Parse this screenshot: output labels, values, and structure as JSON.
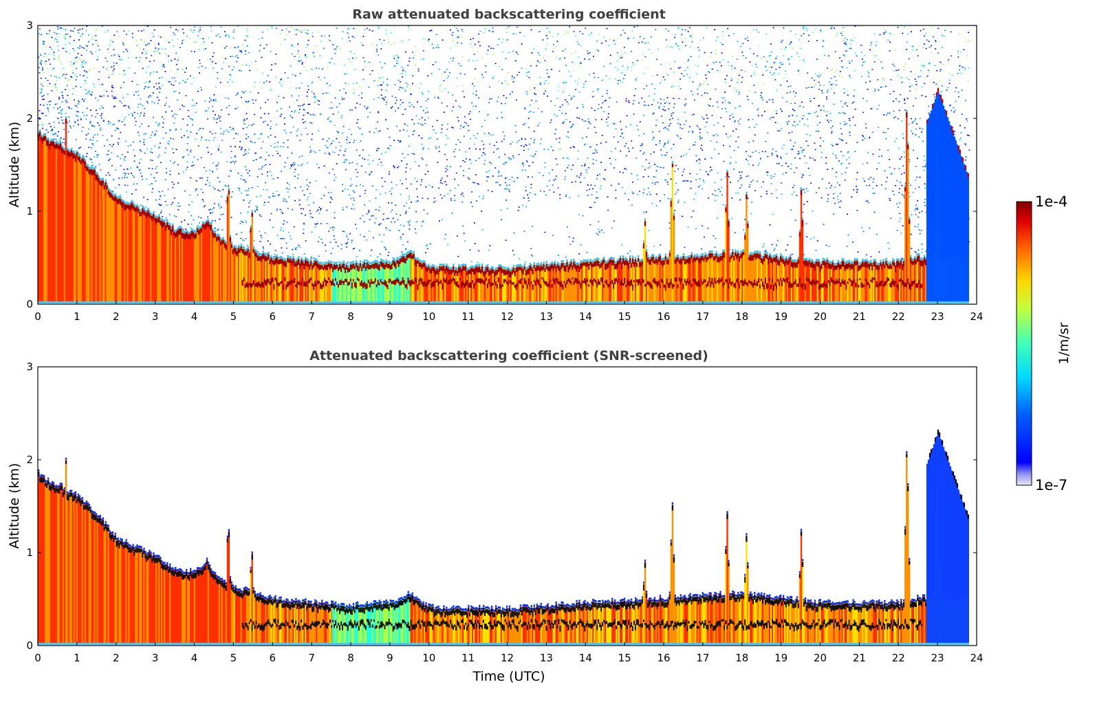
{
  "chart_data": [
    {
      "type": "heatmap",
      "title": "Raw attenuated backscattering coefficient",
      "xlabel": "",
      "ylabel": "Altitude (km)",
      "xlim": [
        0,
        24
      ],
      "ylim": [
        0,
        3
      ],
      "x_ticks": [
        "0",
        "1",
        "2",
        "3",
        "4",
        "5",
        "6",
        "7",
        "8",
        "9",
        "10",
        "11",
        "12",
        "13",
        "14",
        "15",
        "16",
        "17",
        "18",
        "19",
        "20",
        "21",
        "22",
        "23",
        "24"
      ],
      "y_ticks": [
        "0",
        "1",
        "2",
        "3"
      ],
      "screened": false,
      "boundary_layer_top_km": [
        [
          0,
          1.85
        ],
        [
          0.3,
          1.75
        ],
        [
          0.6,
          1.7
        ],
        [
          1.0,
          1.6
        ],
        [
          1.5,
          1.4
        ],
        [
          2.0,
          1.15
        ],
        [
          2.5,
          1.05
        ],
        [
          3.0,
          0.95
        ],
        [
          3.5,
          0.8
        ],
        [
          4.0,
          0.78
        ],
        [
          4.3,
          0.9
        ],
        [
          4.6,
          0.72
        ],
        [
          5.0,
          0.62
        ],
        [
          6.0,
          0.5
        ],
        [
          7.0,
          0.45
        ],
        [
          8.0,
          0.42
        ],
        [
          9.0,
          0.45
        ],
        [
          9.5,
          0.55
        ],
        [
          10.0,
          0.4
        ],
        [
          12.0,
          0.38
        ],
        [
          14.0,
          0.45
        ],
        [
          16.0,
          0.5
        ],
        [
          18.0,
          0.55
        ],
        [
          20.0,
          0.45
        ],
        [
          22.0,
          0.45
        ],
        [
          22.5,
          0.5
        ]
      ],
      "plumes": [
        [
          0.7,
          2.0
        ],
        [
          4.85,
          1.45
        ],
        [
          5.45,
          1.1
        ],
        [
          15.5,
          0.95
        ],
        [
          16.2,
          1.6
        ],
        [
          17.6,
          1.5
        ],
        [
          18.1,
          1.25
        ],
        [
          19.5,
          1.3
        ],
        [
          22.2,
          2.3
        ],
        [
          23.0,
          2.4
        ]
      ],
      "clear_air_region_utc": [
        22.7,
        23.8
      ]
    },
    {
      "type": "heatmap",
      "title": "Attenuated backscattering coefficient (SNR-screened)",
      "xlabel": "Time (UTC)",
      "ylabel": "Altitude (km)",
      "xlim": [
        0,
        24
      ],
      "ylim": [
        0,
        3
      ],
      "x_ticks": [
        "0",
        "1",
        "2",
        "3",
        "4",
        "5",
        "6",
        "7",
        "8",
        "9",
        "10",
        "11",
        "12",
        "13",
        "14",
        "15",
        "16",
        "17",
        "18",
        "19",
        "20",
        "21",
        "22",
        "23",
        "24"
      ],
      "y_ticks": [
        "0",
        "1",
        "2",
        "3"
      ],
      "screened": true
    }
  ],
  "colorbar": {
    "min_label": "1e-7",
    "max_label": "1e-4",
    "unit_label": "1/m/sr",
    "colormap": "jet",
    "scale": "log"
  },
  "colors": {
    "title": "#404040",
    "low": "#0000ff",
    "high": "#800000"
  }
}
